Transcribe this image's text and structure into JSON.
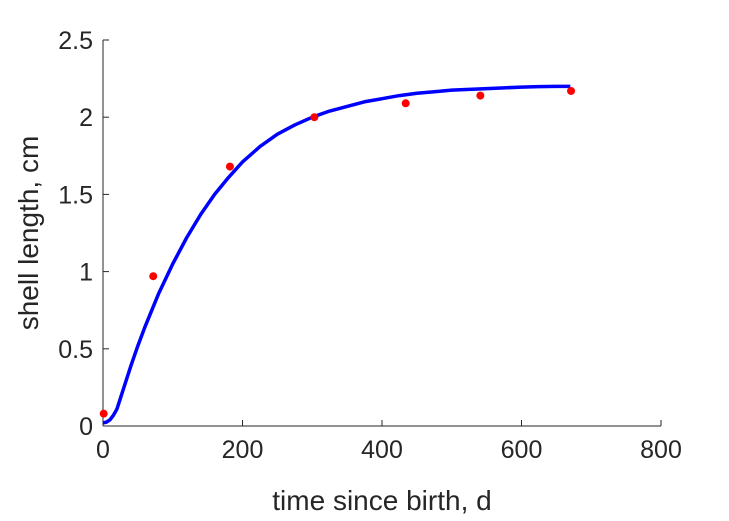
{
  "chart_data": {
    "type": "scatter",
    "title": "",
    "xlabel": "time since birth, d",
    "ylabel": "shell length, cm",
    "xlim": [
      0,
      800
    ],
    "ylim": [
      0,
      2.5
    ],
    "x_ticks": [
      0,
      200,
      400,
      600,
      800
    ],
    "x_tick_labels": [
      "0",
      "200",
      "400",
      "600",
      "800"
    ],
    "y_ticks": [
      0,
      0.5,
      1,
      1.5,
      2,
      2.5
    ],
    "y_tick_labels": [
      "0",
      "0.5",
      "1",
      "1.5",
      "2",
      "2.5"
    ],
    "grid": false,
    "series": [
      {
        "kind": "points",
        "color": "#ff0000",
        "x": [
          1,
          72,
          182,
          303,
          434,
          541,
          671
        ],
        "y": [
          0.08,
          0.97,
          1.68,
          2.0,
          2.09,
          2.14,
          2.17
        ]
      },
      {
        "kind": "line",
        "color": "#0000ff",
        "x": [
          0,
          5,
          10,
          15,
          20,
          25,
          30,
          40,
          50,
          60,
          70,
          80,
          100,
          120,
          140,
          160,
          180,
          200,
          225,
          250,
          275,
          300,
          325,
          350,
          375,
          400,
          425,
          450,
          475,
          500,
          525,
          550,
          575,
          600,
          625,
          650,
          670
        ],
        "y": [
          0.02,
          0.025,
          0.04,
          0.07,
          0.11,
          0.18,
          0.25,
          0.39,
          0.52,
          0.64,
          0.75,
          0.86,
          1.05,
          1.22,
          1.37,
          1.5,
          1.61,
          1.71,
          1.81,
          1.89,
          1.95,
          2.0,
          2.04,
          2.07,
          2.1,
          2.12,
          2.14,
          2.155,
          2.165,
          2.175,
          2.18,
          2.185,
          2.19,
          2.195,
          2.198,
          2.2,
          2.2
        ]
      }
    ]
  }
}
